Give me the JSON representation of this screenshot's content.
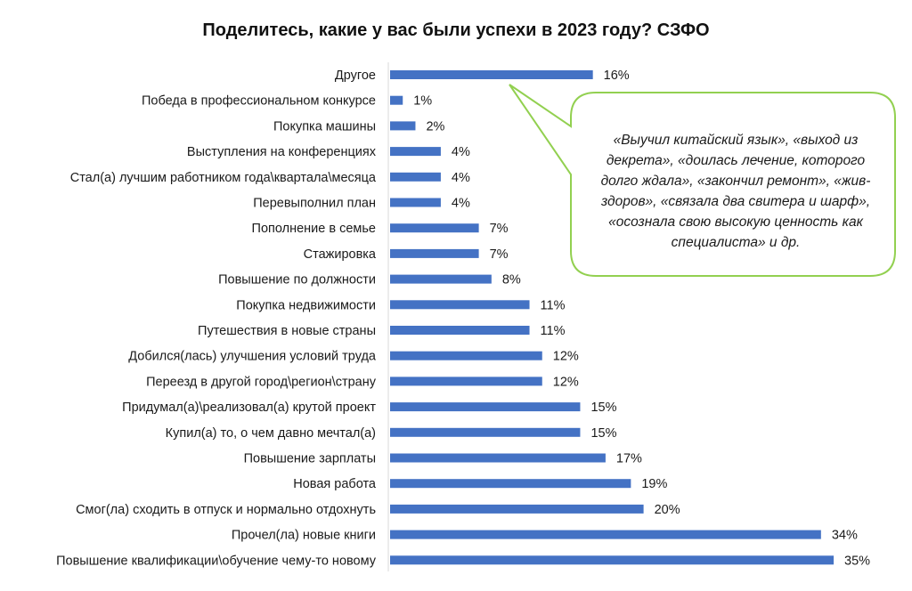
{
  "chart_data": {
    "type": "bar",
    "orientation": "horizontal",
    "title": "Поделитесь, какие у вас были успехи в 2023 году? СЗФО",
    "categories": [
      "Другое",
      "Победа в профессиональном конкурсе",
      "Покупка машины",
      "Выступления на конференциях",
      "Стал(а) лучшим работником года\\квартала\\месяца",
      "Перевыполнил план",
      "Пополнение в семье",
      "Стажировка",
      "Повышение по должности",
      "Покупка недвижимости",
      "Путешествия в новые страны",
      "Добился(лась) улучшения условий труда",
      "Переезд в другой город\\регион\\страну",
      "Придумал(а)\\реализовал(а) крутой проект",
      "Купил(а) то, о чем давно мечтал(а)",
      "Повышение зарплаты",
      "Новая работа",
      "Смог(ла) сходить в отпуск и нормально отдохнуть",
      "Прочел(ла) новые книги",
      "Повышение квалификации\\обучение чему-то новому"
    ],
    "values": [
      16,
      1,
      2,
      4,
      4,
      4,
      7,
      7,
      8,
      11,
      11,
      12,
      12,
      15,
      15,
      17,
      19,
      20,
      34,
      35
    ],
    "value_labels": [
      "16%",
      "1%",
      "2%",
      "4%",
      "4%",
      "4%",
      "7%",
      "7%",
      "8%",
      "11%",
      "11%",
      "12%",
      "12%",
      "15%",
      "15%",
      "17%",
      "19%",
      "20%",
      "34%",
      "35%"
    ],
    "unit": "%",
    "xlim": [
      0,
      35
    ],
    "grid": false,
    "bar_color": "#4472C4",
    "annotation": {
      "text": "«Выучил китайский язык», «выход из декрета», «доилась лечение, которого долго ждала», «закончил ремонт», «жив-здоров», «связала два свитера и шарф», «осознала свою высокую ценность как специалиста» и др.",
      "points_to": "Другое",
      "border_color": "#92D050"
    }
  }
}
